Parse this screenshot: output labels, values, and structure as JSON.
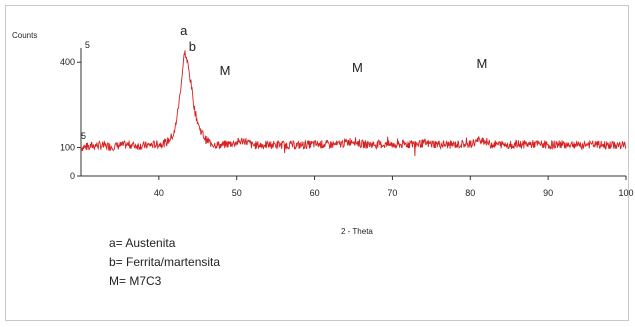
{
  "chart_data": {
    "type": "line",
    "title": "",
    "xlabel": "2 - Theta",
    "ylabel": "Counts",
    "xlim": [
      30,
      100
    ],
    "ylim": [
      0,
      450
    ],
    "x_ticks": [
      40,
      50,
      60,
      70,
      80,
      90,
      100
    ],
    "y_ticks": [
      0,
      100,
      400
    ],
    "y_tick_labels": [
      "0",
      "100",
      "400"
    ],
    "grid": false,
    "line_color": "#d62222",
    "series": [
      {
        "points": [
          [
            30,
            100
          ],
          [
            32,
            108
          ],
          [
            34,
            104
          ],
          [
            36,
            110
          ],
          [
            38,
            106
          ],
          [
            40,
            112
          ],
          [
            41,
            118
          ],
          [
            42,
            150
          ],
          [
            42.6,
            260
          ],
          [
            43.1,
            385
          ],
          [
            43.3,
            440
          ],
          [
            43.7,
            395
          ],
          [
            44.1,
            330
          ],
          [
            44.6,
            230
          ],
          [
            45.2,
            170
          ],
          [
            46,
            128
          ],
          [
            47,
            112
          ],
          [
            48,
            108
          ],
          [
            50,
            118
          ],
          [
            51,
            125
          ],
          [
            52,
            108
          ],
          [
            55,
            110
          ],
          [
            58,
            108
          ],
          [
            60,
            112
          ],
          [
            63,
            110
          ],
          [
            65,
            125
          ],
          [
            66,
            112
          ],
          [
            70,
            110
          ],
          [
            74,
            114
          ],
          [
            77,
            110
          ],
          [
            80,
            112
          ],
          [
            81.5,
            130
          ],
          [
            82.5,
            112
          ],
          [
            85,
            110
          ],
          [
            88,
            112
          ],
          [
            90,
            110
          ],
          [
            93,
            112
          ],
          [
            96,
            110
          ],
          [
            98,
            108
          ],
          [
            100,
            108
          ]
        ]
      }
    ],
    "noise_amplitude": 15,
    "peak_annotations": [
      {
        "label": "a",
        "x": 43.2,
        "y": 495
      },
      {
        "label": "b",
        "x": 44.3,
        "y": 440
      },
      {
        "label": "M",
        "x": 48.5,
        "y": 355
      },
      {
        "label": "M",
        "x": 65.5,
        "y": 365
      },
      {
        "label": "M",
        "x": 81.5,
        "y": 380
      }
    ],
    "corner_marks": [
      {
        "label": "5",
        "x": 30.5,
        "y": 450
      },
      {
        "label": "5",
        "x": 30,
        "y": 130
      }
    ],
    "legend": [
      {
        "label": "a= Austenita"
      },
      {
        "label": "b= Ferrita/martensita"
      },
      {
        "label": "M= M7C3"
      }
    ]
  }
}
